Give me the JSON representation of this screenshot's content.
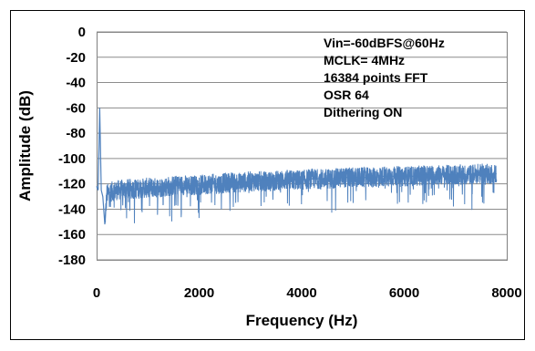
{
  "chart_data": {
    "type": "line",
    "title": "",
    "xlabel": "Frequency (Hz)",
    "ylabel": "Amplitude (dB)",
    "xlim": [
      0,
      8000
    ],
    "ylim": [
      -180,
      0
    ],
    "xticks": [
      "0",
      "2000",
      "4000",
      "6000",
      "8000"
    ],
    "yticks": [
      "0",
      "-20",
      "-40",
      "-60",
      "-80",
      "-100",
      "-120",
      "-140",
      "-160",
      "-180"
    ],
    "grid": "horizontal",
    "series": [
      {
        "color": "#4F81BD",
        "x": [
          0,
          30,
          60,
          90,
          120,
          160,
          200,
          300,
          400,
          600,
          800,
          1000,
          1200,
          1400,
          1600,
          1800,
          2000,
          2200,
          2400,
          2600,
          2800,
          3000,
          3200,
          3400,
          3600,
          3800,
          4000,
          4200,
          4400,
          4600,
          4800,
          5000,
          5200,
          5400,
          5600,
          5800,
          6000,
          6200,
          6400,
          6600,
          6800,
          7000,
          7200,
          7400,
          7600,
          7800
        ],
        "y": [
          -122,
          -125,
          -60,
          -125,
          -130,
          -152,
          -128,
          -126,
          -125,
          -124,
          -124,
          -123,
          -123,
          -122,
          -121,
          -121,
          -121,
          -120,
          -120,
          -119,
          -119,
          -118,
          -118,
          -118,
          -117,
          -117,
          -117,
          -116,
          -116,
          -116,
          -115,
          -115,
          -115,
          -115,
          -114,
          -114,
          -114,
          -114,
          -113,
          -113,
          -113,
          -113,
          -113,
          -112,
          -112,
          -112
        ]
      }
    ],
    "annotations": [
      "Vin=-60dBFS@60Hz",
      "MCLK= 4MHz",
      "16384 points FFT",
      "OSR 64",
      "Dithering ON"
    ]
  }
}
